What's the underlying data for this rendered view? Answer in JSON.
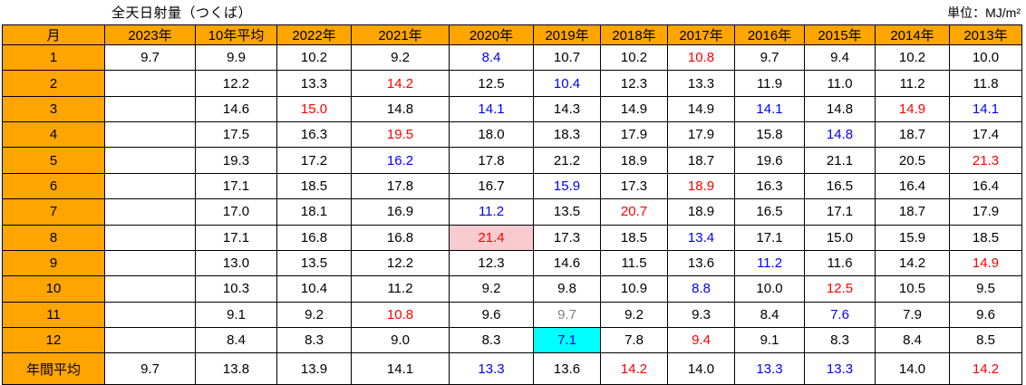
{
  "title": "全天日射量（つくば）",
  "unit": "単位：MJ/m²",
  "colors": {
    "header_bg": "#FFA500",
    "red_text": "#FF0000",
    "blue_text": "#0000FF",
    "gray_text": "#7F7F7F",
    "pink_bg": "#F8CBD0",
    "cyan_bg": "#00FFFF",
    "border": "#000000"
  },
  "table": {
    "columns": [
      {
        "key": "month",
        "label": "月"
      },
      {
        "key": "y2023",
        "label": "2023年"
      },
      {
        "key": "avg10",
        "label": "10年平均"
      },
      {
        "key": "y2022",
        "label": "2022年"
      },
      {
        "key": "y2021",
        "label": "2021年"
      },
      {
        "key": "y2020",
        "label": "2020年"
      },
      {
        "key": "y2019",
        "label": "2019年"
      },
      {
        "key": "y2018",
        "label": "2018年"
      },
      {
        "key": "y2017",
        "label": "2017年"
      },
      {
        "key": "y2016",
        "label": "2016年"
      },
      {
        "key": "y2015",
        "label": "2015年"
      },
      {
        "key": "y2014",
        "label": "2014年"
      },
      {
        "key": "y2013",
        "label": "2013年"
      }
    ],
    "rows": [
      {
        "label": "1",
        "cells": [
          {
            "v": "9.7"
          },
          {
            "v": "9.9"
          },
          {
            "v": "10.2"
          },
          {
            "v": "9.2"
          },
          {
            "v": "8.4",
            "c": "blue"
          },
          {
            "v": "10.7"
          },
          {
            "v": "10.2"
          },
          {
            "v": "10.8",
            "c": "red"
          },
          {
            "v": "9.7"
          },
          {
            "v": "9.4"
          },
          {
            "v": "10.2"
          },
          {
            "v": "10.0"
          }
        ]
      },
      {
        "label": "2",
        "cells": [
          {
            "v": ""
          },
          {
            "v": "12.2"
          },
          {
            "v": "13.3"
          },
          {
            "v": "14.2",
            "c": "red"
          },
          {
            "v": "12.5"
          },
          {
            "v": "10.4",
            "c": "blue"
          },
          {
            "v": "12.3"
          },
          {
            "v": "13.3"
          },
          {
            "v": "11.9"
          },
          {
            "v": "11.0"
          },
          {
            "v": "11.2"
          },
          {
            "v": "11.8"
          }
        ]
      },
      {
        "label": "3",
        "cells": [
          {
            "v": ""
          },
          {
            "v": "14.6"
          },
          {
            "v": "15.0",
            "c": "red"
          },
          {
            "v": "14.8"
          },
          {
            "v": "14.1",
            "c": "blue"
          },
          {
            "v": "14.3"
          },
          {
            "v": "14.9"
          },
          {
            "v": "14.9"
          },
          {
            "v": "14.1",
            "c": "blue"
          },
          {
            "v": "14.8"
          },
          {
            "v": "14.9",
            "c": "red"
          },
          {
            "v": "14.1",
            "c": "blue"
          }
        ]
      },
      {
        "label": "4",
        "cells": [
          {
            "v": ""
          },
          {
            "v": "17.5"
          },
          {
            "v": "16.3"
          },
          {
            "v": "19.5",
            "c": "red"
          },
          {
            "v": "18.0"
          },
          {
            "v": "18.3"
          },
          {
            "v": "17.9"
          },
          {
            "v": "17.9"
          },
          {
            "v": "15.8"
          },
          {
            "v": "14.8",
            "c": "blue"
          },
          {
            "v": "18.7"
          },
          {
            "v": "17.4"
          }
        ]
      },
      {
        "label": "5",
        "cells": [
          {
            "v": ""
          },
          {
            "v": "19.3"
          },
          {
            "v": "17.2"
          },
          {
            "v": "16.2",
            "c": "blue"
          },
          {
            "v": "17.8"
          },
          {
            "v": "21.2"
          },
          {
            "v": "18.9"
          },
          {
            "v": "18.7"
          },
          {
            "v": "19.6"
          },
          {
            "v": "21.1"
          },
          {
            "v": "20.5"
          },
          {
            "v": "21.3",
            "c": "red"
          }
        ]
      },
      {
        "label": "6",
        "cells": [
          {
            "v": ""
          },
          {
            "v": "17.1"
          },
          {
            "v": "18.5"
          },
          {
            "v": "17.8"
          },
          {
            "v": "16.7"
          },
          {
            "v": "15.9",
            "c": "blue"
          },
          {
            "v": "17.3"
          },
          {
            "v": "18.9",
            "c": "red"
          },
          {
            "v": "16.3"
          },
          {
            "v": "16.5"
          },
          {
            "v": "16.4"
          },
          {
            "v": "16.4"
          }
        ]
      },
      {
        "label": "7",
        "cells": [
          {
            "v": ""
          },
          {
            "v": "17.0"
          },
          {
            "v": "18.1"
          },
          {
            "v": "16.9"
          },
          {
            "v": "11.2",
            "c": "blue"
          },
          {
            "v": "13.5"
          },
          {
            "v": "20.7",
            "c": "red"
          },
          {
            "v": "18.9"
          },
          {
            "v": "16.5"
          },
          {
            "v": "17.1"
          },
          {
            "v": "18.7"
          },
          {
            "v": "17.9"
          }
        ]
      },
      {
        "label": "8",
        "cells": [
          {
            "v": ""
          },
          {
            "v": "17.1"
          },
          {
            "v": "16.8"
          },
          {
            "v": "16.8"
          },
          {
            "v": "21.4",
            "c": "red",
            "bg": "pink"
          },
          {
            "v": "17.3"
          },
          {
            "v": "18.5"
          },
          {
            "v": "13.4",
            "c": "blue"
          },
          {
            "v": "17.1"
          },
          {
            "v": "15.0"
          },
          {
            "v": "15.9"
          },
          {
            "v": "18.5"
          }
        ]
      },
      {
        "label": "9",
        "cells": [
          {
            "v": ""
          },
          {
            "v": "13.0"
          },
          {
            "v": "13.5"
          },
          {
            "v": "12.2"
          },
          {
            "v": "12.3"
          },
          {
            "v": "14.6"
          },
          {
            "v": "11.5"
          },
          {
            "v": "13.6"
          },
          {
            "v": "11.2",
            "c": "blue"
          },
          {
            "v": "11.6"
          },
          {
            "v": "14.2"
          },
          {
            "v": "14.9",
            "c": "red"
          }
        ]
      },
      {
        "label": "10",
        "cells": [
          {
            "v": ""
          },
          {
            "v": "10.3"
          },
          {
            "v": "10.4"
          },
          {
            "v": "11.2"
          },
          {
            "v": "9.2"
          },
          {
            "v": "9.8"
          },
          {
            "v": "10.9"
          },
          {
            "v": "8.8",
            "c": "blue"
          },
          {
            "v": "10.0"
          },
          {
            "v": "12.5",
            "c": "red"
          },
          {
            "v": "10.5"
          },
          {
            "v": "9.5"
          }
        ]
      },
      {
        "label": "11",
        "cells": [
          {
            "v": ""
          },
          {
            "v": "9.1"
          },
          {
            "v": "9.2"
          },
          {
            "v": "10.8",
            "c": "red"
          },
          {
            "v": "9.6"
          },
          {
            "v": "9.7",
            "c": "gray"
          },
          {
            "v": "9.2"
          },
          {
            "v": "9.3"
          },
          {
            "v": "8.4"
          },
          {
            "v": "7.6",
            "c": "blue"
          },
          {
            "v": "7.9"
          },
          {
            "v": "9.6"
          }
        ]
      },
      {
        "label": "12",
        "cells": [
          {
            "v": ""
          },
          {
            "v": "8.4"
          },
          {
            "v": "8.3"
          },
          {
            "v": "9.0"
          },
          {
            "v": "8.3"
          },
          {
            "v": "7.1",
            "c": "blue",
            "bg": "cyan"
          },
          {
            "v": "7.8"
          },
          {
            "v": "9.4",
            "c": "red"
          },
          {
            "v": "9.1"
          },
          {
            "v": "8.3"
          },
          {
            "v": "8.4"
          },
          {
            "v": "8.5"
          }
        ]
      },
      {
        "label": "年間平均",
        "cells": [
          {
            "v": "9.7"
          },
          {
            "v": "13.8"
          },
          {
            "v": "13.9"
          },
          {
            "v": "14.1"
          },
          {
            "v": "13.3",
            "c": "blue"
          },
          {
            "v": "13.6"
          },
          {
            "v": "14.2",
            "c": "red"
          },
          {
            "v": "14.0"
          },
          {
            "v": "13.3",
            "c": "blue"
          },
          {
            "v": "13.3",
            "c": "blue"
          },
          {
            "v": "14.0"
          },
          {
            "v": "14.2",
            "c": "red"
          }
        ]
      }
    ]
  }
}
